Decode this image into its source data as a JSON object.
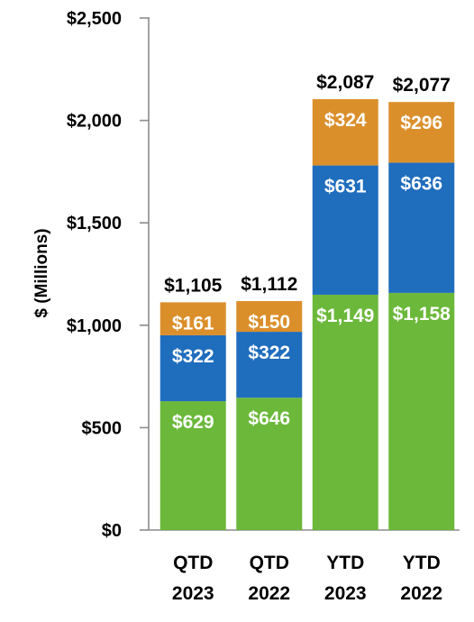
{
  "chart_data": {
    "type": "bar",
    "stacked": true,
    "title": "",
    "xlabel": "",
    "ylabel": "$ (Millions)",
    "ylim": [
      0,
      2500
    ],
    "yticks": [
      0,
      500,
      1000,
      1500,
      2000,
      2500
    ],
    "ytick_labels": [
      "$0",
      "$500",
      "$1,000",
      "$1,500",
      "$2,000",
      "$2,500"
    ],
    "categories": [
      [
        "QTD",
        "2023"
      ],
      [
        "QTD",
        "2022"
      ],
      [
        "YTD",
        "2023"
      ],
      [
        "YTD",
        "2022"
      ]
    ],
    "series": [
      {
        "color": "#6bb83a",
        "values": [
          629,
          646,
          1149,
          1158
        ],
        "value_labels": [
          "$629",
          "$646",
          "$1,149",
          "$1,158"
        ]
      },
      {
        "color": "#1f6dbd",
        "values": [
          322,
          322,
          631,
          636
        ],
        "value_labels": [
          "$322",
          "$322",
          "$631",
          "$636"
        ]
      },
      {
        "color": "#db8f2b",
        "values": [
          161,
          150,
          324,
          296
        ],
        "value_labels": [
          "$161",
          "$150",
          "$324",
          "$296"
        ]
      }
    ],
    "totals": [
      1105,
      1112,
      2087,
      2077
    ],
    "total_labels": [
      "$1,105",
      "$1,112",
      "$2,087",
      "$2,077"
    ],
    "grid": false,
    "legend": "none"
  }
}
